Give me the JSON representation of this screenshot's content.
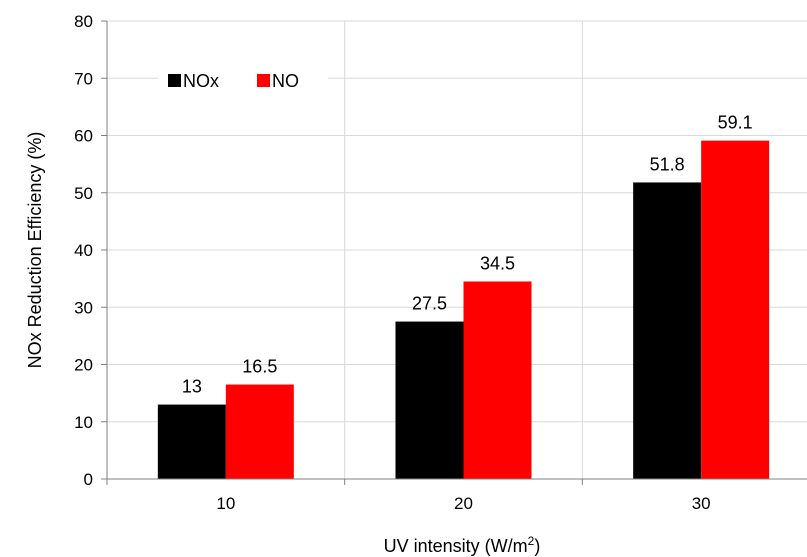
{
  "chart_data": {
    "type": "bar",
    "categories": [
      "10",
      "20",
      "30"
    ],
    "series": [
      {
        "name": "NOx",
        "values": [
          13,
          27.5,
          51.8
        ],
        "color": "#000000"
      },
      {
        "name": "NO",
        "values": [
          16.5,
          34.5,
          59.1
        ],
        "color": "#ff0000"
      }
    ],
    "data_labels": [
      [
        "13",
        "27.5",
        "51.8"
      ],
      [
        "16.5",
        "34.5",
        "59.1"
      ]
    ],
    "xlabel": "UV intensity (W/m",
    "xlabel_sup": "2",
    "xlabel_end": ")",
    "ylabel": "NOx Reduction Efficiency (%)",
    "ylim": [
      0,
      80
    ],
    "yticks": [
      "0",
      "10",
      "20",
      "30",
      "40",
      "50",
      "60",
      "70",
      "80"
    ],
    "grid": "both",
    "grid_color": "#d9d9d9",
    "legend_placement": "top-left"
  }
}
